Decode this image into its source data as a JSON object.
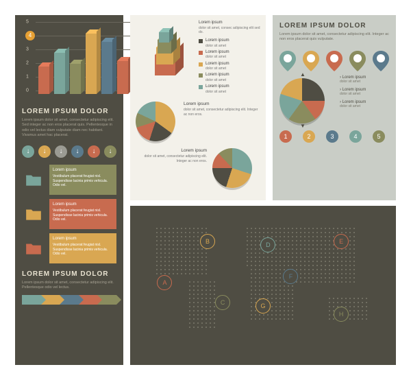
{
  "palette": {
    "dark": "#4f4d43",
    "cream": "#f3f1ea",
    "sage": "#c9cdc6",
    "yellow": "#e6a034",
    "teal": "#7aa59b",
    "blue": "#5b7a8c",
    "red": "#c86b4f",
    "olive": "#8a8c5e",
    "gold": "#d9a752",
    "grey": "#9b9b93"
  },
  "left_panel": {
    "bar_chart": {
      "type": "bar",
      "ylim": [
        0,
        5
      ],
      "ytick_step": 1,
      "highlighted_tick": 4,
      "grid_color": "#6a675c",
      "bars": [
        {
          "value": 2.0,
          "color": "#c86b4f"
        },
        {
          "value": 3.0,
          "color": "#7aa59b"
        },
        {
          "value": 2.2,
          "color": "#8a8c5e"
        },
        {
          "value": 4.4,
          "color": "#d9a752"
        },
        {
          "value": 3.8,
          "color": "#5b7a8c"
        },
        {
          "value": 2.4,
          "color": "#c86b4f"
        }
      ]
    },
    "title": "LOREM IPSUM DOLOR",
    "body": "Lorem ipsum dolor sit amet, consectetur adipiscing elit. Sed integer ac non eros placerat quis. Pellentesque in odio vel lectus diam vulputate diam nec habitant. Vivamus amet hac placerat.",
    "arrow_colors": [
      "#7aa59b",
      "#d9a752",
      "#9b9b93",
      "#5b7a8c",
      "#c86b4f",
      "#8a8c5e"
    ],
    "folders": [
      {
        "icon_color": "#7aa59b",
        "box_color": "#8a8c5e",
        "title": "Lorem ipsum",
        "text": "Vestibulum placerat feugiat nisl. Suspendisse lacinia primis vehicula. Odio vel."
      },
      {
        "icon_color": "#d9a752",
        "box_color": "#c86b4f",
        "title": "Lorem ipsum",
        "text": "Vestibulum placerat feugiat nisl. Suspendisse lacinia primis vehicula. Odio vel."
      },
      {
        "icon_color": "#c86b4f",
        "box_color": "#d9a752",
        "title": "Lorem ipsum",
        "text": "Vestibulum placerat feugiat nisl. Suspendisse lacinia primis vehicula. Odio vel."
      }
    ],
    "title2": "LOREM IPSUM DOLOR",
    "body2": "Lorem ipsum dolor sit amet, consectetur adipiscing elit. Pellentesque odio vel lectus.",
    "chevron_colors": [
      "#7aa59b",
      "#d9a752",
      "#5b7a8c",
      "#c86b4f",
      "#8a8c5e"
    ]
  },
  "mid_panel": {
    "cubes": {
      "title": "Lorem ipsum",
      "text": "dolor sit amet, consec adipiscing elit sed do.",
      "stack": [
        {
          "color": "#c86b4f"
        },
        {
          "color": "#d9a752"
        },
        {
          "color": "#8a8c5e"
        },
        {
          "color": "#7aa59b"
        }
      ],
      "legend": [
        {
          "color": "#4f4d43",
          "title": "Lorem ipsum",
          "text": "dolor sit amet"
        },
        {
          "color": "#c86b4f",
          "title": "Lorem ipsum",
          "text": "dolor sit amet"
        },
        {
          "color": "#d9a752",
          "title": "Lorem ipsum",
          "text": "dolor sit amet"
        },
        {
          "color": "#8a8c5e",
          "title": "Lorem ipsum",
          "text": "dolor sit amet"
        },
        {
          "color": "#7aa59b",
          "title": "Lorem ipsum",
          "text": "dolor sit amet"
        }
      ]
    },
    "pie1": {
      "type": "pie",
      "slices": [
        {
          "color": "#d9a752",
          "pct": 35
        },
        {
          "color": "#4f4d43",
          "pct": 20
        },
        {
          "color": "#c86b4f",
          "pct": 15
        },
        {
          "color": "#8a8c5e",
          "pct": 12
        },
        {
          "color": "#7aa59b",
          "pct": 18
        }
      ],
      "title": "Lorem ipsum",
      "text": "dolor sit amet, consectetur adipiscing elit. Integer ac non eros."
    },
    "pie2": {
      "type": "pie",
      "slices": [
        {
          "color": "#7aa59b",
          "pct": 30
        },
        {
          "color": "#d9a752",
          "pct": 25
        },
        {
          "color": "#4f4d43",
          "pct": 20
        },
        {
          "color": "#c86b4f",
          "pct": 13
        },
        {
          "color": "#8a8c5e",
          "pct": 12
        }
      ],
      "title": "Lorem ipsum",
      "text": "dolor sit amet, consectetur adipiscing elit. Integer ac non eros."
    }
  },
  "right_panel": {
    "title": "LOREM IPSUM DOLOR",
    "body": "Lorem ipsum dolor sit amet, consectetur adipiscing elit. Integer ac non eros placerat quis vulputate.",
    "pin_colors": [
      "#7aa59b",
      "#d9a752",
      "#c86b4f",
      "#8a8c5e",
      "#5b7a8c"
    ],
    "pie": {
      "type": "pie",
      "slices": [
        {
          "color": "#4f4d43",
          "pct": 25
        },
        {
          "color": "#c86b4f",
          "pct": 15
        },
        {
          "color": "#8a8c5e",
          "pct": 20
        },
        {
          "color": "#7aa59b",
          "pct": 20
        },
        {
          "color": "#d9a752",
          "pct": 20
        }
      ],
      "legend": [
        {
          "title": "Lorem ipsum",
          "text": "dolor sit amet"
        },
        {
          "title": "Lorem ipsum",
          "text": "dolor sit amet"
        },
        {
          "title": "Lorem ipsum",
          "text": "dolor sit amet"
        }
      ]
    },
    "steps": [
      {
        "n": "1",
        "color": "#c86b4f"
      },
      {
        "n": "2",
        "color": "#d9a752"
      },
      {
        "n": "3",
        "color": "#5b7a8c"
      },
      {
        "n": "4",
        "color": "#7aa59b"
      },
      {
        "n": "5",
        "color": "#8a8c5e"
      }
    ]
  },
  "map_panel": {
    "markers": [
      {
        "label": "A",
        "color": "#c86b4f",
        "x": 11,
        "y": 48
      },
      {
        "label": "B",
        "color": "#d9a752",
        "x": 28,
        "y": 20
      },
      {
        "label": "C",
        "color": "#8a8c5e",
        "x": 34,
        "y": 62
      },
      {
        "label": "D",
        "color": "#7aa59b",
        "x": 52,
        "y": 22
      },
      {
        "label": "E",
        "color": "#c86b4f",
        "x": 81,
        "y": 20
      },
      {
        "label": "F",
        "color": "#5b7a8c",
        "x": 61,
        "y": 44
      },
      {
        "label": "G",
        "color": "#d9a752",
        "x": 50,
        "y": 64
      },
      {
        "label": "H",
        "color": "#8a8c5e",
        "x": 81,
        "y": 70
      }
    ]
  }
}
